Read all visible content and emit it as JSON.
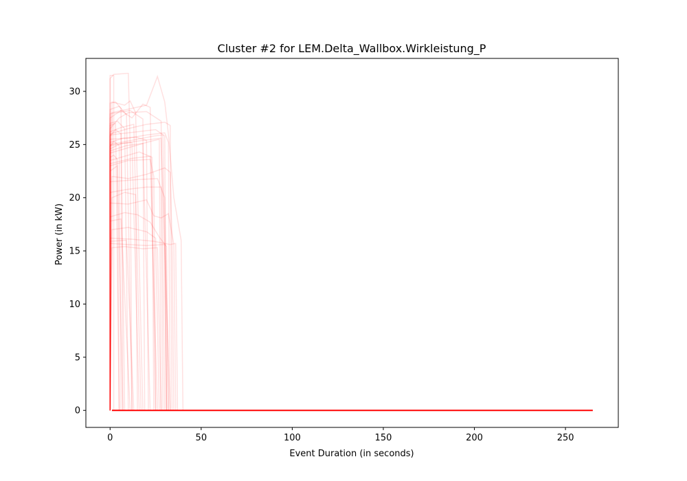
{
  "chart_data": {
    "type": "line",
    "title": "Cluster #2 for LEM.Delta_Wallbox.Wirkleistung_P",
    "xlabel": "Event Duration (in seconds)",
    "ylabel": "Power (in kW)",
    "xlim": [
      -13.3,
      279
    ],
    "ylim": [
      -1.6,
      33.1
    ],
    "xticks": [
      0,
      50,
      100,
      150,
      200,
      250
    ],
    "yticks": [
      0,
      5,
      10,
      15,
      20,
      25,
      30
    ],
    "xtick_labels": [
      "0",
      "50",
      "100",
      "150",
      "200",
      "250"
    ],
    "ytick_labels": [
      "0",
      "5",
      "10",
      "15",
      "20",
      "25",
      "30"
    ],
    "grid": false,
    "legend": "none",
    "line_color": "#ff0000",
    "line_alpha": 0.12,
    "baseline": {
      "from_x": 1,
      "to_x": 265,
      "y": 0
    },
    "series": [
      {
        "values": [
          [
            0,
            0
          ],
          [
            0,
            31.5
          ],
          [
            2,
            31.5
          ],
          [
            2,
            0
          ],
          [
            3,
            0
          ]
        ]
      },
      {
        "values": [
          [
            0,
            0
          ],
          [
            0,
            31.2
          ],
          [
            2,
            31.6
          ],
          [
            10,
            31.7
          ],
          [
            11,
            25
          ],
          [
            12,
            0
          ],
          [
            13,
            0
          ]
        ]
      },
      {
        "values": [
          [
            0,
            0
          ],
          [
            1,
            28
          ],
          [
            20,
            28.7
          ],
          [
            26,
            31.4
          ],
          [
            30,
            29
          ],
          [
            32,
            26
          ],
          [
            35,
            20
          ],
          [
            38,
            17
          ],
          [
            39,
            16
          ],
          [
            40,
            0
          ],
          [
            42,
            0
          ]
        ]
      },
      {
        "values": [
          [
            0,
            0
          ],
          [
            0,
            27.5
          ],
          [
            6,
            28.2
          ],
          [
            12,
            27.5
          ],
          [
            18,
            28.8
          ],
          [
            22,
            28.5
          ],
          [
            25,
            0
          ],
          [
            26,
            0
          ]
        ]
      },
      {
        "values": [
          [
            0,
            0
          ],
          [
            1,
            29
          ],
          [
            8,
            28.7
          ],
          [
            11,
            29.1
          ],
          [
            14,
            28
          ],
          [
            18,
            0
          ],
          [
            19,
            0
          ]
        ]
      },
      {
        "values": [
          [
            0,
            0
          ],
          [
            0,
            26.5
          ],
          [
            5,
            27.5
          ],
          [
            10,
            28
          ],
          [
            20,
            28.1
          ],
          [
            28,
            27.2
          ],
          [
            30,
            0
          ],
          [
            31,
            0
          ]
        ]
      },
      {
        "values": [
          [
            0,
            0
          ],
          [
            0,
            26
          ],
          [
            10,
            26.5
          ],
          [
            20,
            26.9
          ],
          [
            30,
            27.1
          ],
          [
            33,
            26.8
          ],
          [
            34,
            0
          ],
          [
            35,
            0
          ]
        ]
      },
      {
        "values": [
          [
            0,
            0
          ],
          [
            0,
            25.5
          ],
          [
            10,
            25.6
          ],
          [
            20,
            25.9
          ],
          [
            30,
            26.1
          ],
          [
            32,
            25.2
          ],
          [
            33,
            0
          ],
          [
            34,
            0
          ]
        ]
      },
      {
        "values": [
          [
            0,
            0
          ],
          [
            0,
            25
          ],
          [
            12,
            25.4
          ],
          [
            24,
            25.8
          ],
          [
            29,
            25.9
          ],
          [
            31,
            0
          ],
          [
            32,
            0
          ]
        ]
      },
      {
        "values": [
          [
            0,
            0
          ],
          [
            0,
            24.2
          ],
          [
            10,
            24.7
          ],
          [
            20,
            25.2
          ],
          [
            27,
            25.5
          ],
          [
            28,
            0
          ],
          [
            29,
            0
          ]
        ]
      },
      {
        "values": [
          [
            0,
            0
          ],
          [
            0,
            23.5
          ],
          [
            8,
            23.9
          ],
          [
            16,
            24.3
          ],
          [
            23,
            23.8
          ],
          [
            24,
            0
          ],
          [
            25,
            0
          ]
        ]
      },
      {
        "values": [
          [
            0,
            0
          ],
          [
            0,
            24.6
          ],
          [
            6,
            25.1
          ],
          [
            12,
            25.2
          ],
          [
            16,
            0
          ],
          [
            17,
            0
          ]
        ]
      },
      {
        "values": [
          [
            0,
            0
          ],
          [
            0,
            23
          ],
          [
            10,
            23.5
          ],
          [
            22,
            23.6
          ],
          [
            24,
            22
          ],
          [
            25,
            0
          ],
          [
            26,
            0
          ]
        ]
      },
      {
        "values": [
          [
            0,
            0
          ],
          [
            1,
            22
          ],
          [
            10,
            21.8
          ],
          [
            20,
            22.2
          ],
          [
            30,
            22.8
          ],
          [
            33,
            22.4
          ],
          [
            34,
            16
          ],
          [
            35,
            0
          ],
          [
            36,
            0
          ]
        ]
      },
      {
        "values": [
          [
            0,
            0
          ],
          [
            0,
            21.5
          ],
          [
            15,
            21.7
          ],
          [
            26,
            21.8
          ],
          [
            30,
            20
          ],
          [
            32,
            0
          ],
          [
            33,
            0
          ]
        ]
      },
      {
        "values": [
          [
            0,
            0
          ],
          [
            0,
            20.5
          ],
          [
            10,
            20.8
          ],
          [
            20,
            21
          ],
          [
            28,
            21
          ],
          [
            29,
            0
          ],
          [
            30,
            0
          ]
        ]
      },
      {
        "values": [
          [
            0,
            0
          ],
          [
            0,
            19.5
          ],
          [
            10,
            19.4
          ],
          [
            20,
            19.8
          ],
          [
            24,
            18.3
          ],
          [
            28,
            18.1
          ],
          [
            32,
            18.5
          ],
          [
            35,
            15.6
          ],
          [
            36,
            0
          ],
          [
            37,
            0
          ]
        ]
      },
      {
        "values": [
          [
            0,
            0
          ],
          [
            0,
            18.2
          ],
          [
            8,
            18.6
          ],
          [
            15,
            18.4
          ],
          [
            22,
            17.7
          ],
          [
            27,
            16.3
          ],
          [
            31,
            15.4
          ],
          [
            32,
            0
          ],
          [
            33,
            0
          ]
        ]
      },
      {
        "values": [
          [
            0,
            0
          ],
          [
            1,
            17
          ],
          [
            10,
            17.2
          ],
          [
            20,
            16.8
          ],
          [
            25,
            16.2
          ],
          [
            27,
            0
          ],
          [
            28,
            0
          ]
        ]
      },
      {
        "values": [
          [
            0,
            0
          ],
          [
            0,
            16.2
          ],
          [
            12,
            16.1
          ],
          [
            24,
            15.9
          ],
          [
            33,
            15.6
          ],
          [
            36,
            15.7
          ],
          [
            37,
            0
          ],
          [
            38,
            0
          ]
        ]
      },
      {
        "values": [
          [
            0,
            0
          ],
          [
            0,
            15.7
          ],
          [
            10,
            15.6
          ],
          [
            20,
            15.5
          ],
          [
            30,
            15.6
          ],
          [
            31,
            0
          ],
          [
            32,
            0
          ]
        ]
      },
      {
        "values": [
          [
            0,
            0
          ],
          [
            1,
            15.3
          ],
          [
            8,
            15.4
          ],
          [
            18,
            15.2
          ],
          [
            26,
            15.3
          ],
          [
            28,
            0
          ],
          [
            29,
            0
          ]
        ]
      },
      {
        "values": [
          [
            0,
            0
          ],
          [
            0,
            27
          ],
          [
            4,
            27.2
          ],
          [
            8,
            26.5
          ],
          [
            10,
            0
          ],
          [
            11,
            0
          ]
        ]
      },
      {
        "values": [
          [
            0,
            0
          ],
          [
            0,
            25.8
          ],
          [
            3,
            26.4
          ],
          [
            6,
            26
          ],
          [
            8,
            0
          ],
          [
            9,
            0
          ]
        ]
      },
      {
        "values": [
          [
            0,
            0
          ],
          [
            0,
            24.8
          ],
          [
            2,
            25.3
          ],
          [
            5,
            24.9
          ],
          [
            6,
            0
          ],
          [
            7,
            0
          ]
        ]
      },
      {
        "values": [
          [
            0,
            0
          ],
          [
            0,
            23.8
          ],
          [
            2,
            24
          ],
          [
            4,
            23.6
          ],
          [
            5,
            0
          ],
          [
            6,
            0
          ]
        ]
      },
      {
        "values": [
          [
            0,
            0
          ],
          [
            0,
            26.8
          ],
          [
            3,
            27
          ],
          [
            5,
            0
          ],
          [
            6,
            0
          ]
        ]
      },
      {
        "values": [
          [
            0,
            0
          ],
          [
            0,
            22.5
          ],
          [
            4,
            23
          ],
          [
            7,
            0
          ],
          [
            8,
            0
          ]
        ]
      },
      {
        "values": [
          [
            0,
            0
          ],
          [
            0,
            28.3
          ],
          [
            5,
            28.6
          ],
          [
            9,
            27.8
          ],
          [
            12,
            0
          ],
          [
            13,
            0
          ]
        ]
      },
      {
        "values": [
          [
            0,
            0
          ],
          [
            0,
            25.2
          ],
          [
            7,
            25.6
          ],
          [
            14,
            25.7
          ],
          [
            20,
            25.4
          ],
          [
            21,
            0
          ],
          [
            22,
            0
          ]
        ]
      },
      {
        "values": [
          [
            0,
            0
          ],
          [
            0,
            24.4
          ],
          [
            9,
            24.9
          ],
          [
            18,
            25.1
          ],
          [
            22,
            0
          ],
          [
            23,
            0
          ]
        ]
      },
      {
        "values": [
          [
            0,
            0
          ],
          [
            0,
            26.2
          ],
          [
            6,
            26.6
          ],
          [
            13,
            26.9
          ],
          [
            17,
            0
          ],
          [
            18,
            0
          ]
        ]
      },
      {
        "values": [
          [
            0,
            0
          ],
          [
            1,
            20
          ],
          [
            8,
            20.5
          ],
          [
            14,
            20.3
          ],
          [
            15,
            0
          ],
          [
            16,
            0
          ]
        ]
      },
      {
        "values": [
          [
            0,
            0
          ],
          [
            0,
            17.8
          ],
          [
            6,
            18
          ],
          [
            11,
            0
          ],
          [
            12,
            0
          ]
        ]
      },
      {
        "values": [
          [
            0,
            0
          ],
          [
            0,
            15.9
          ],
          [
            9,
            16
          ],
          [
            13,
            0
          ],
          [
            14,
            0
          ]
        ]
      },
      {
        "values": [
          [
            0,
            0
          ],
          [
            0,
            27.9
          ],
          [
            11,
            28.2
          ],
          [
            18,
            27.4
          ],
          [
            19,
            0
          ],
          [
            20,
            0
          ]
        ]
      },
      {
        "values": [
          [
            0,
            0
          ],
          [
            0,
            23.2
          ],
          [
            12,
            23.7
          ],
          [
            22,
            23.9
          ],
          [
            26,
            0
          ],
          [
            27,
            0
          ]
        ]
      },
      {
        "values": [
          [
            0,
            0
          ],
          [
            0,
            25.9
          ],
          [
            15,
            26.2
          ],
          [
            25,
            26.4
          ],
          [
            30,
            25.8
          ],
          [
            31,
            0
          ],
          [
            32,
            0
          ]
        ]
      },
      {
        "values": [
          [
            0,
            0
          ],
          [
            0,
            24.9
          ],
          [
            14,
            25.3
          ],
          [
            28,
            25.6
          ],
          [
            33,
            0
          ],
          [
            34,
            0
          ]
        ]
      },
      {
        "values": [
          [
            0,
            0
          ],
          [
            0,
            28.9
          ],
          [
            3,
            29
          ],
          [
            6,
            28.4
          ],
          [
            7,
            0
          ],
          [
            8,
            0
          ]
        ]
      }
    ]
  }
}
